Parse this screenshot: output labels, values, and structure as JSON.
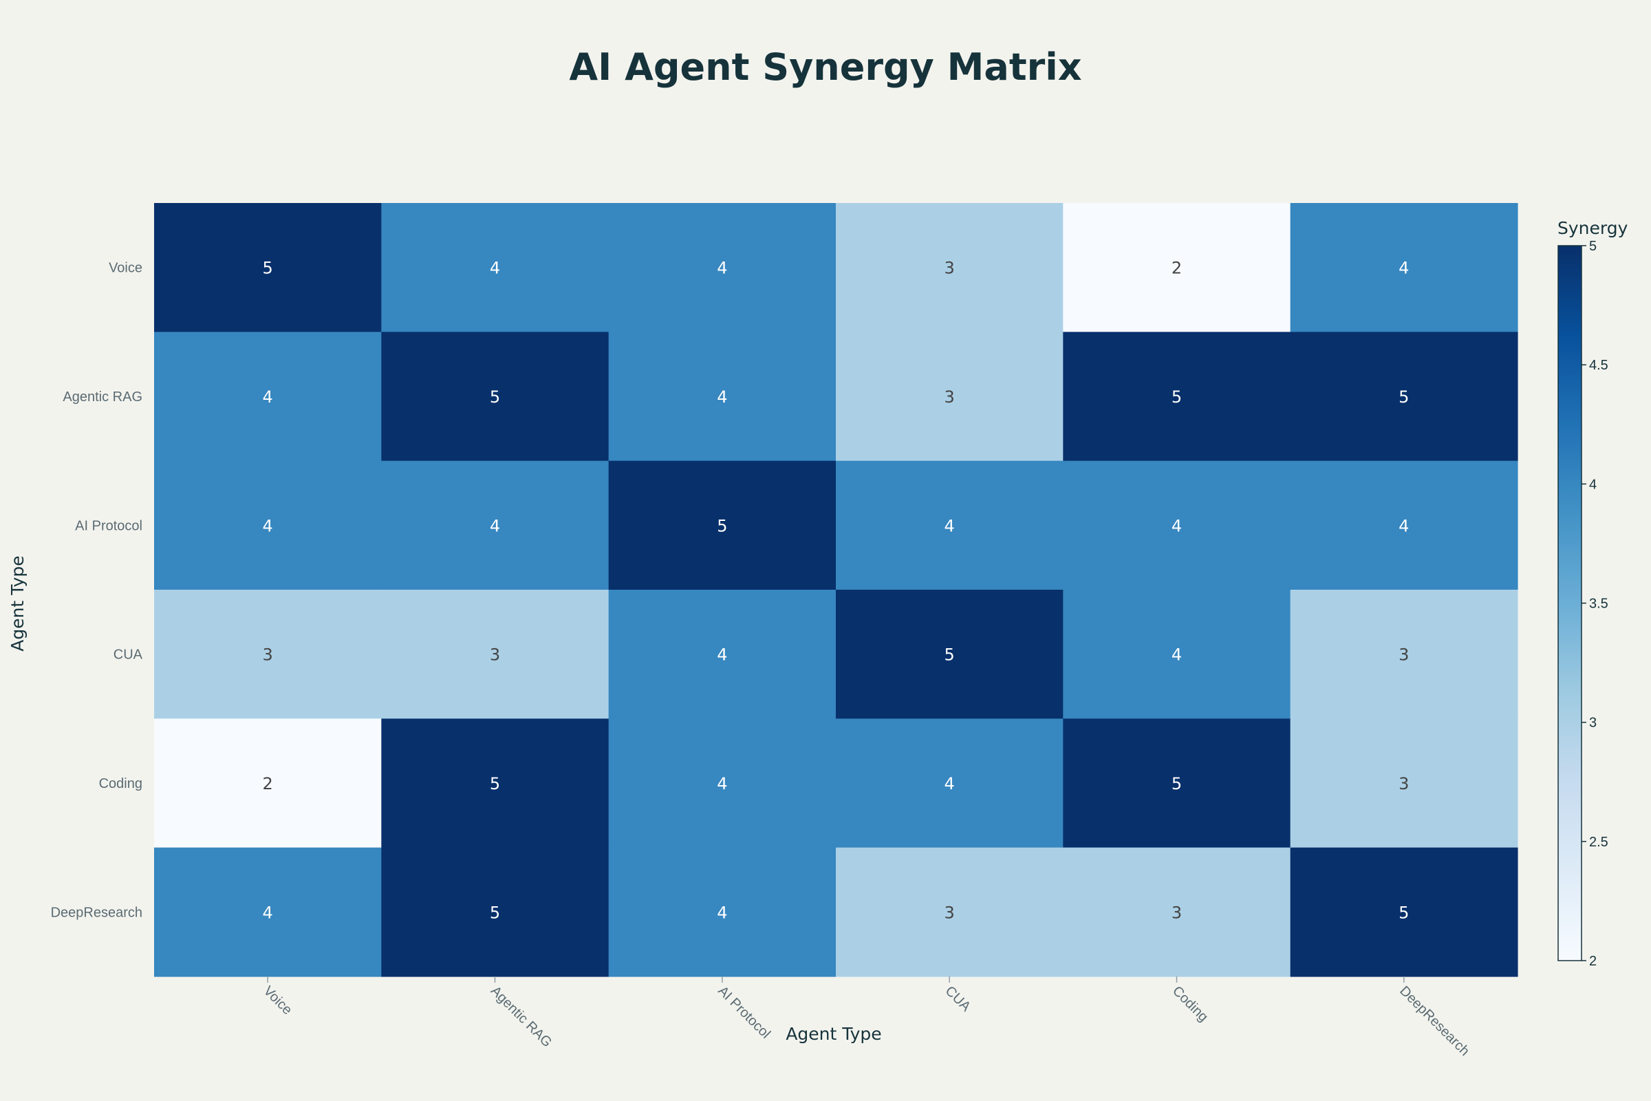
{
  "chart_data": {
    "type": "heatmap",
    "title": "AI Agent Synergy Matrix",
    "xlabel": "Agent Type",
    "ylabel": "Agent Type",
    "x_categories": [
      "Voice",
      "Agentic RAG",
      "AI Protocol",
      "CUA",
      "Coding",
      "DeepResearch"
    ],
    "y_categories": [
      "Voice",
      "Agentic RAG",
      "AI Protocol",
      "CUA",
      "Coding",
      "DeepResearch"
    ],
    "values": [
      [
        5,
        4,
        4,
        3,
        2,
        4
      ],
      [
        4,
        5,
        4,
        3,
        5,
        5
      ],
      [
        4,
        4,
        5,
        4,
        4,
        4
      ],
      [
        3,
        3,
        4,
        5,
        4,
        3
      ],
      [
        2,
        5,
        4,
        4,
        5,
        3
      ],
      [
        4,
        5,
        4,
        3,
        3,
        5
      ]
    ],
    "colorbar": {
      "title": "Synergy",
      "range": [
        2,
        5
      ],
      "ticks": [
        "2",
        "2.5",
        "3",
        "3.5",
        "4",
        "4.5",
        "5"
      ],
      "colorscale": "Blues",
      "legend_position": "right"
    }
  }
}
